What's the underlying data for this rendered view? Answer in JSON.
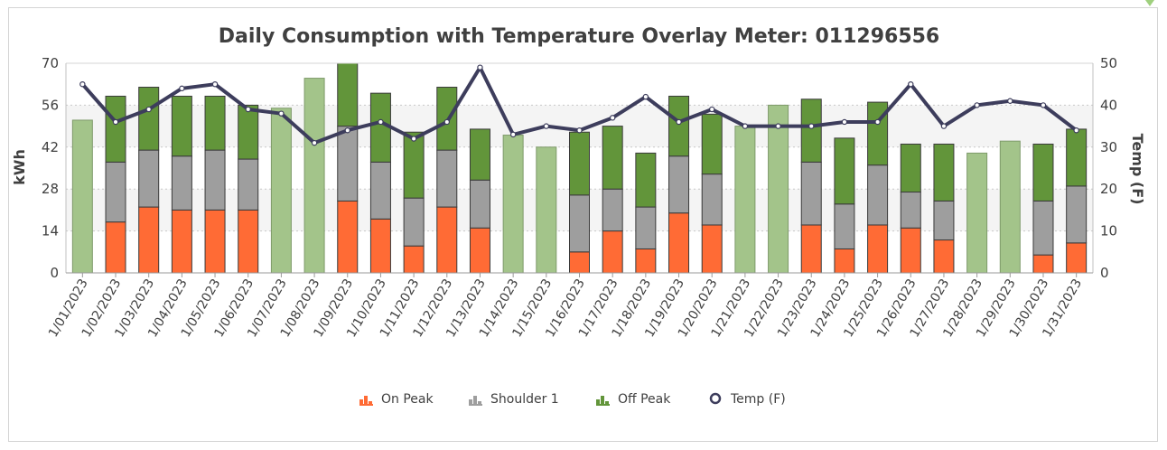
{
  "chart_data": {
    "type": "bar",
    "stacked": true,
    "title": "Daily Consumption with Temperature Overlay Meter: 011296556",
    "ylabel": "kWh",
    "y2label": "Temp (F)",
    "ylim": [
      0,
      70
    ],
    "y2lim": [
      0,
      50
    ],
    "yticks": [
      "0",
      "14",
      "28",
      "42",
      "56",
      "70"
    ],
    "y2ticks": [
      "0",
      "10",
      "20",
      "30",
      "40",
      "50"
    ],
    "grid": true,
    "legend_position": "bottom",
    "categories": [
      "1/01/2023",
      "1/02/2023",
      "1/03/2023",
      "1/04/2023",
      "1/05/2023",
      "1/06/2023",
      "1/07/2023",
      "1/08/2023",
      "1/09/2023",
      "1/10/2023",
      "1/11/2023",
      "1/12/2023",
      "1/13/2023",
      "1/14/2023",
      "1/15/2023",
      "1/16/2023",
      "1/17/2023",
      "1/18/2023",
      "1/19/2023",
      "1/20/2023",
      "1/21/2023",
      "1/22/2023",
      "1/23/2023",
      "1/24/2023",
      "1/25/2023",
      "1/26/2023",
      "1/27/2023",
      "1/28/2023",
      "1/29/2023",
      "1/30/2023",
      "1/31/2023"
    ],
    "weekend_flags": [
      true,
      false,
      false,
      false,
      false,
      false,
      true,
      true,
      false,
      false,
      false,
      false,
      false,
      true,
      true,
      false,
      false,
      false,
      false,
      false,
      true,
      true,
      false,
      false,
      false,
      false,
      false,
      true,
      true,
      false,
      false
    ],
    "series": [
      {
        "name": "On Peak",
        "kind": "bar",
        "color": "#ff6b35",
        "values": [
          0,
          17,
          22,
          21,
          21,
          21,
          0,
          0,
          24,
          18,
          9,
          22,
          15,
          0,
          0,
          7,
          14,
          8,
          20,
          16,
          0,
          0,
          16,
          8,
          16,
          15,
          11,
          0,
          0,
          6,
          10
        ]
      },
      {
        "name": "Shoulder 1",
        "kind": "bar",
        "color": "#9e9e9e",
        "values": [
          0,
          20,
          19,
          18,
          20,
          17,
          0,
          0,
          25,
          19,
          16,
          19,
          16,
          0,
          0,
          19,
          14,
          14,
          19,
          17,
          0,
          0,
          21,
          15,
          20,
          12,
          13,
          0,
          0,
          18,
          19
        ]
      },
      {
        "name": "Off Peak",
        "kind": "bar",
        "color": "#62953a",
        "weekend_color": "#a3c48a",
        "values": [
          51,
          22,
          21,
          20,
          18,
          18,
          55,
          65,
          21,
          23,
          22,
          21,
          17,
          46,
          42,
          21,
          21,
          18,
          20,
          20,
          49,
          56,
          21,
          22,
          21,
          16,
          19,
          40,
          44,
          19,
          19
        ]
      },
      {
        "name": "Temp (F)",
        "kind": "line",
        "axis": "right",
        "color": "#3d3d5c",
        "values": [
          45,
          36,
          39,
          44,
          45,
          39,
          38,
          31,
          34,
          36,
          32,
          36,
          49,
          33,
          35,
          34,
          37,
          42,
          36,
          39,
          35,
          35,
          35,
          36,
          36,
          45,
          35,
          40,
          41,
          40,
          34
        ]
      }
    ]
  }
}
